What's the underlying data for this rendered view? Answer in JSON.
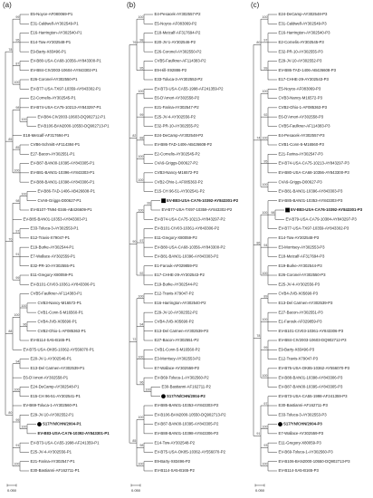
{
  "panels": [
    {
      "label": "(a)",
      "scale": {
        "value": 0.05,
        "label": "0.050"
      },
      "leaves": [
        {
          "name": "E5-Noyce-AF080069-P1"
        },
        {
          "name": "E31-Caldwell-AY302549-P1"
        },
        {
          "name": "E16-Harrington-AY302540-P1"
        },
        {
          "name": "E14-Tow-AY302548-P1"
        },
        {
          "name": "E9-Barty-X83496-P1"
        },
        {
          "name": "EV-B80-USA-CA68-10356-AY843300-P1"
        },
        {
          "name": "EV-B84-CIV2003-10604-AY843302-P1"
        },
        {
          "name": "E26-Coronel-AY302550-P1"
        },
        {
          "name": "EV-B77-USA-TX97-10359-AY843302-P1"
        },
        {
          "name": "E2-Cornelis-AY302545-P1"
        },
        {
          "name": "EV-B74-USA-CA75-10213-AY843297-P1"
        },
        {
          "name": "EV-B84-CIV2003-10603-DQ902712-P1"
        },
        {
          "name": "EV-B106-BAN2000-10550-DQ902713-P1"
        },
        {
          "name": "E18-Metcalf-AF317694-P1"
        },
        {
          "name": "CVB6-Schmitt-AF114384-P1"
        },
        {
          "name": "E27-Bacon-AY302551-P1"
        },
        {
          "name": "EV-B87-BAN00-10395-AY843305-P1"
        },
        {
          "name": "EV-B81-BAN01-10396-AY843303-P1"
        },
        {
          "name": "EV-B88-BAN01-10398-AY843306-P1"
        },
        {
          "name": "EV-B86-TAD-1406-AB426608-P1"
        },
        {
          "name": "CVA9-Griggs-D00627-P1"
        },
        {
          "name": "EV-B107-TN94-0346-AB426609-P1"
        },
        {
          "name": "EV-B85-BAN01-10353-AY843303-P1"
        },
        {
          "name": "E33-Toluca-3-AY302553-P1"
        },
        {
          "name": "E12-Travis-X79047-P1"
        },
        {
          "name": "E19-Burke-AY302544-P1"
        },
        {
          "name": "E7-Wallace-AY302559-P1"
        },
        {
          "name": "E32-PR-10-AY302555-P1"
        },
        {
          "name": "E11-Gregory-X80059-P1"
        },
        {
          "name": "EV-B101-CIV03-10361-AY843306-P1"
        },
        {
          "name": "CVB5-Faulkner-AF114383-P1"
        },
        {
          "name": "CVB3-Nancy-M16572-P1"
        },
        {
          "name": "CVB1-Conn-5-M16560-P1"
        },
        {
          "name": "CVB4-JVB-X05690-P1"
        },
        {
          "name": "CVB2-Ohio-1-AF085363-P1"
        },
        {
          "name": "EV-B114-SA5-B165-P1"
        },
        {
          "name": "EV-B75-USA-OK85-10362-AY556070-P1"
        },
        {
          "name": "E20-JV-1-AY302546-P1"
        },
        {
          "name": "E13-Del Carmen-AY302539-P1"
        },
        {
          "name": "E6-D'Amori-AY302558-P1"
        },
        {
          "name": "E24-DeCamp-AY302548-P1"
        },
        {
          "name": "E15-CH 96-51-AY302541-P1"
        },
        {
          "name": "EV-B69-Toluca-1-AY302560-P1"
        },
        {
          "name": "E29-JV-10-AY302552-P1"
        },
        {
          "name": "S17/YN/CHN/2004-P1",
          "marker": "circle",
          "bold": true
        },
        {
          "name": "EV-B83-USA-CA76-10392-AY843301-P1",
          "bold": true
        },
        {
          "name": "EV-B73-USA-CA55-1998-AF241359-P1"
        },
        {
          "name": "E25-JV-4-AY302556-P1"
        },
        {
          "name": "E21-Farina-AY302547-P1"
        },
        {
          "name": "E30-Bastianni-AF162711-P1"
        }
      ],
      "supports": [
        {
          "value": 78,
          "span": [
            0,
            8
          ]
        },
        {
          "value": 99,
          "span": [
            0,
            1
          ]
        },
        {
          "value": 95,
          "span": [
            2,
            4
          ]
        },
        {
          "value": 87,
          "span": [
            5,
            6
          ]
        },
        {
          "value": 100,
          "span": [
            7,
            8
          ]
        },
        {
          "value": 85,
          "span": [
            9,
            18
          ]
        },
        {
          "value": 98,
          "span": [
            9,
            12
          ]
        },
        {
          "value": 100,
          "span": [
            11,
            12
          ]
        },
        {
          "value": 85,
          "span": [
            14,
            15
          ]
        },
        {
          "value": 100,
          "span": [
            16,
            18
          ]
        },
        {
          "value": 70,
          "span": [
            19,
            29
          ]
        },
        {
          "value": 98,
          "span": [
            19,
            21
          ]
        },
        {
          "value": 100,
          "span": [
            19,
            20
          ]
        },
        {
          "value": 97,
          "span": [
            23,
            24
          ]
        },
        {
          "value": 91,
          "span": [
            25,
            27
          ]
        },
        {
          "value": 99,
          "span": [
            28,
            29
          ]
        },
        {
          "value": 88,
          "span": [
            30,
            36
          ]
        },
        {
          "value": 100,
          "span": [
            30,
            35
          ]
        },
        {
          "value": 100,
          "span": [
            31,
            32
          ]
        },
        {
          "value": 96,
          "span": [
            33,
            34
          ]
        },
        {
          "value": 80,
          "span": [
            37,
            49
          ]
        },
        {
          "value": 94,
          "span": [
            37,
            38
          ]
        },
        {
          "value": 100,
          "span": [
            40,
            41
          ]
        },
        {
          "value": 99,
          "span": [
            43,
            45
          ]
        },
        {
          "value": 100,
          "span": [
            44,
            45
          ]
        },
        {
          "value": 91,
          "span": [
            46,
            47
          ]
        },
        {
          "value": 100,
          "span": [
            48,
            49
          ]
        }
      ]
    },
    {
      "label": "(b)",
      "scale": {
        "value": 0.05,
        "label": "0.050"
      },
      "leaves": [
        {
          "name": "E4-Pesacek-AY302557-P2"
        },
        {
          "name": "E5-Noyce-AF083069-P2"
        },
        {
          "name": "E18-Metcalf-AF317694-P2"
        },
        {
          "name": "E20-JV-1-AY302546-P2"
        },
        {
          "name": "E26-Coronel-AY302550-P2"
        },
        {
          "name": "CVB5-Faulkner-AF114383-P2"
        },
        {
          "name": "E9-Hill-X92886-P2"
        },
        {
          "name": "E33-Toluca-3-AY302553-P2"
        },
        {
          "name": "EV-B73-USA-CA55-1998-AF241359-P2"
        },
        {
          "name": "E6-D'Amori-AY302558-P2"
        },
        {
          "name": "E21-Farina-AY302547-P2"
        },
        {
          "name": "E25-JV-4-AY302556-P2"
        },
        {
          "name": "E32-PR-10-AY302555-P2"
        },
        {
          "name": "E24-DeCamp-AY302548-P2"
        },
        {
          "name": "EV-B86-TAD-1406-AB426608-P2"
        },
        {
          "name": "E2-Cornelis-AY302545-P2"
        },
        {
          "name": "CVA9-Griggs-D00627-P2"
        },
        {
          "name": "CVB3-Nancy-M16572-P2"
        },
        {
          "name": "CVB2-Ohio-1-AF085363-P2"
        },
        {
          "name": "E15-CH 96-51-AY302541-P2"
        },
        {
          "name": "EV-B83-USA-CA76-10392-AY843301-P2",
          "marker": "square",
          "bold": true
        },
        {
          "name": "EV-B77-USA-TX97-10359-AY843302-P2"
        },
        {
          "name": "EV-B74-USA-CA75-10213-AY843297-P2"
        },
        {
          "name": "EV-B101-CIV03-10361-AY843306-P2"
        },
        {
          "name": "E11-Gregory-X80059-P2"
        },
        {
          "name": "EV-B80-USA-CA68-10356-AY843300-P2"
        },
        {
          "name": "EV-B81-BAN01-10396-AY843303-P2"
        },
        {
          "name": "E1-Farouk-AF029859-P2"
        },
        {
          "name": "E17-CHHE-29-AY302543-P2"
        },
        {
          "name": "E19-Burke-AY302544-P2"
        },
        {
          "name": "E12-Travis-X79047-P2"
        },
        {
          "name": "E16-Harrington-AY302540-P2"
        },
        {
          "name": "E29-JV-10-AY302552-P2"
        },
        {
          "name": "CVB4-JVB-X05690-P2"
        },
        {
          "name": "E13-Del Carmen-AY302539-P2"
        },
        {
          "name": "E27-Bacon-AY302551-P2"
        },
        {
          "name": "CVB1-Conn-5-M16560-P2"
        },
        {
          "name": "E3-Morrisey-AY302553-P2"
        },
        {
          "name": "E7-Wallace-AY302559-P2"
        },
        {
          "name": "EV-B69-Toluca-1-AY302560-P2"
        },
        {
          "name": "E30-Bastianni-AF162711-P2"
        },
        {
          "name": "S17/YN/CHN/2004-P2",
          "marker": "circle",
          "bold": true
        },
        {
          "name": "EV-B85-BAN01-10353-AY843303-P2"
        },
        {
          "name": "EV-B106-BAN2000-10550-DQ902713-P2"
        },
        {
          "name": "EV-B87-BAN00-10395-AY843305-P2"
        },
        {
          "name": "EV-B88-BAN01-10398-AY843306-P2"
        },
        {
          "name": "E14-Tow-AY302548-P2"
        },
        {
          "name": "EV-B75-USA-OK85-10362-AY556070-P2"
        },
        {
          "name": "E9-Barty-X83496-P2"
        },
        {
          "name": "EV-B114-SA5-B165-P2"
        }
      ],
      "supports": [
        {
          "value": 76,
          "span": [
            0,
            7
          ]
        },
        {
          "value": 100,
          "span": [
            0,
            1
          ]
        },
        {
          "value": 98,
          "span": [
            2,
            4
          ]
        },
        {
          "value": 95,
          "span": [
            5,
            7
          ]
        },
        {
          "value": 82,
          "span": [
            8,
            19
          ]
        },
        {
          "value": 100,
          "span": [
            8,
            9
          ]
        },
        {
          "value": 99,
          "span": [
            10,
            12
          ]
        },
        {
          "value": 88,
          "span": [
            13,
            14
          ]
        },
        {
          "value": 100,
          "span": [
            15,
            16
          ]
        },
        {
          "value": 100,
          "span": [
            17,
            19
          ]
        },
        {
          "value": 90,
          "span": [
            20,
            29
          ]
        },
        {
          "value": 100,
          "span": [
            20,
            22
          ]
        },
        {
          "value": 99,
          "span": [
            20,
            21
          ]
        },
        {
          "value": 97,
          "span": [
            23,
            26
          ]
        },
        {
          "value": 92,
          "span": [
            27,
            29
          ]
        },
        {
          "value": 72,
          "span": [
            30,
            41
          ]
        },
        {
          "value": 100,
          "span": [
            30,
            31
          ]
        },
        {
          "value": 94,
          "span": [
            32,
            35
          ]
        },
        {
          "value": 100,
          "span": [
            36,
            38
          ]
        },
        {
          "value": 96,
          "span": [
            39,
            41
          ]
        },
        {
          "value": 100,
          "span": [
            40,
            41
          ]
        },
        {
          "value": 85,
          "span": [
            42,
            49
          ]
        },
        {
          "value": 100,
          "span": [
            42,
            45
          ]
        },
        {
          "value": 98,
          "span": [
            46,
            47
          ]
        },
        {
          "value": 100,
          "span": [
            48,
            49
          ]
        }
      ]
    },
    {
      "label": "(c)",
      "scale": {
        "value": 0.05,
        "label": "0.050"
      },
      "leaves": [
        {
          "name": "E24-DeCamp-AY302548-P3"
        },
        {
          "name": "E31-Caldwell-AY302549-P3"
        },
        {
          "name": "E16-Harrington-AY302540-P3"
        },
        {
          "name": "E2-Cornelis-AY302545-P3"
        },
        {
          "name": "E32-PR-10-AY302555-P3"
        },
        {
          "name": "E29-JV-10-AY302552-P3"
        },
        {
          "name": "EV-B86-TAD-1406-AB426608-P3"
        },
        {
          "name": "E17-CHHE-29-AY302543-P3"
        },
        {
          "name": "E5-Noyce-AF083069-P3"
        },
        {
          "name": "CVB3-Nancy-M16572-P3"
        },
        {
          "name": "CVB2-Ohio-1-AF085363-P3"
        },
        {
          "name": "E6-D'Amori-AY302558-P3"
        },
        {
          "name": "CVB5-Faulkner-AF114383-P3"
        },
        {
          "name": "E4-Pesacek-AY302557-P3"
        },
        {
          "name": "CVB1-Conn-5-M16560-P3"
        },
        {
          "name": "E21-Farina-AY302547-P3"
        },
        {
          "name": "EV-B74-USA-CA75-10213-AY843297-P3"
        },
        {
          "name": "EV-B80-USA-CA68-10356-AY843300-P3"
        },
        {
          "name": "CVA9-Griggs-D00627-P3"
        },
        {
          "name": "EV-B81-BAN01-10396-AY843303-P3"
        },
        {
          "name": "EV-B85-BAN01-10353-AY843303-P3"
        },
        {
          "name": "EV-B83-USA-CA76-10392-AY843301-P3",
          "marker": "square",
          "bold": true
        },
        {
          "name": "EV-B79-USA-CA79-10384-AY843297-P3"
        },
        {
          "name": "EV-B77-USA-TX97-10359-AY843302-P3"
        },
        {
          "name": "E14-Tow-AY302548-P3"
        },
        {
          "name": "E3-Morrisey-AY302553-P3"
        },
        {
          "name": "E18-Metcalf-AF317694-P3"
        },
        {
          "name": "E19-Burke-AY302544-P3"
        },
        {
          "name": "E26-Coronel-AY302550-P3"
        },
        {
          "name": "E25-JV-4-AY302556-P3"
        },
        {
          "name": "CVB4-JVB-X05690-P3"
        },
        {
          "name": "E13-Del Carmen-AY302539-P3"
        },
        {
          "name": "E27-Bacon-AY302551-P3"
        },
        {
          "name": "E1-Farouk-AF029859-P3"
        },
        {
          "name": "EV-B101-CIV03-10361-AY843306-P3"
        },
        {
          "name": "EV-B84-CIV2003-10603-DQ902712-P3"
        },
        {
          "name": "E9-Barty-X83496-P3"
        },
        {
          "name": "E12-Travis-X79047-P3"
        },
        {
          "name": "EV-B75-USA-OK85-10362-AY556070-P3"
        },
        {
          "name": "EV-B88-BAN01-10398-AY843306-P3"
        },
        {
          "name": "EV-B87-BAN00-10395-AY843305-P3"
        },
        {
          "name": "EV-B73-USA-CA55-1998-AF241359-P3"
        },
        {
          "name": "E30-Bastianni-AF162711-P3"
        },
        {
          "name": "E33-Toluca-3-AY302553-P3"
        },
        {
          "name": "S17/YN/CHN/2004-P3",
          "marker": "circle",
          "bold": true
        },
        {
          "name": "E7-Wallace-AY302559-P3"
        },
        {
          "name": "E11-Gregory-X80059-P3"
        },
        {
          "name": "EV-B69-Toluca-1-AY302560-P3"
        },
        {
          "name": "EV-B106-BAN2000-10550-DQ902713-P3"
        },
        {
          "name": "EV-B114-SA5-B165-P3"
        }
      ],
      "supports": [
        {
          "value": 80,
          "span": [
            0,
            7
          ]
        },
        {
          "value": 100,
          "span": [
            0,
            1
          ]
        },
        {
          "value": 97,
          "span": [
            2,
            4
          ]
        },
        {
          "value": 99,
          "span": [
            5,
            7
          ]
        },
        {
          "value": 74,
          "span": [
            8,
            19
          ]
        },
        {
          "value": 100,
          "span": [
            8,
            9
          ]
        },
        {
          "value": 92,
          "span": [
            10,
            12
          ]
        },
        {
          "value": 100,
          "span": [
            13,
            14
          ]
        },
        {
          "value": 95,
          "span": [
            15,
            17
          ]
        },
        {
          "value": 100,
          "span": [
            18,
            19
          ]
        },
        {
          "value": 86,
          "span": [
            20,
            29
          ]
        },
        {
          "value": 100,
          "span": [
            20,
            23
          ]
        },
        {
          "value": 98,
          "span": [
            21,
            22
          ]
        },
        {
          "value": 94,
          "span": [
            24,
            26
          ]
        },
        {
          "value": 100,
          "span": [
            27,
            29
          ]
        },
        {
          "value": 78,
          "span": [
            30,
            40
          ]
        },
        {
          "value": 89,
          "span": [
            30,
            31
          ]
        },
        {
          "value": 100,
          "span": [
            32,
            34
          ]
        },
        {
          "value": 99,
          "span": [
            35,
            37
          ]
        },
        {
          "value": 100,
          "span": [
            38,
            40
          ]
        },
        {
          "value": 91,
          "span": [
            41,
            49
          ]
        },
        {
          "value": 97,
          "span": [
            41,
            43
          ]
        },
        {
          "value": 100,
          "span": [
            44,
            45
          ]
        },
        {
          "value": 93,
          "span": [
            46,
            47
          ]
        },
        {
          "value": 100,
          "span": [
            48,
            49
          ]
        }
      ]
    }
  ]
}
